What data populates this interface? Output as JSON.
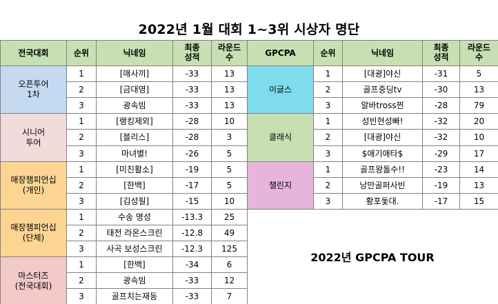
{
  "title": "2022년 1월 대회 1~3위 시상자 명단",
  "tour_label": "2022년 GPCPA TOUR",
  "left_headers": {
    "category": "전국대회",
    "rank": "순위",
    "nickname": "닉네임",
    "score": "최종\n성적",
    "rounds": "라운드\n수"
  },
  "right_headers": {
    "category": "GPCPA",
    "rank": "순위",
    "nickname": "닉네임",
    "score": "최종\n성적",
    "rounds": "라운드\n수"
  },
  "left_groups": [
    {
      "name": "오픈투어\n1차",
      "color": "#c5d9f1",
      "rows": [
        {
          "rank": "1",
          "nickname": "[매사끼]",
          "score": "-33",
          "rounds": "13"
        },
        {
          "rank": "2",
          "nickname": "[금대영]",
          "score": "-33",
          "rounds": "13"
        },
        {
          "rank": "3",
          "nickname": "광속빔",
          "score": "-33",
          "rounds": "13"
        }
      ]
    },
    {
      "name": "시니어\n투어",
      "color": "#f2dcdb",
      "rows": [
        {
          "rank": "1",
          "nickname": "[랭킹제외]",
          "score": "-28",
          "rounds": "10"
        },
        {
          "rank": "2",
          "nickname": "[블리스]",
          "score": "-28",
          "rounds": "3"
        },
        {
          "rank": "3",
          "nickname": "마녀별!",
          "score": "-26",
          "rounds": "5"
        }
      ]
    },
    {
      "name": "매장챔피언십\n(개인)",
      "color": "#fcd592",
      "rows": [
        {
          "rank": "1",
          "nickname": "[미친활소]",
          "score": "-19",
          "rounds": "5"
        },
        {
          "rank": "2",
          "nickname": "[한백]",
          "score": "-17",
          "rounds": "5"
        },
        {
          "rank": "3",
          "nickname": "[김성필]",
          "score": "-15",
          "rounds": "10"
        }
      ]
    },
    {
      "name": "매장챔피언십\n(단체)",
      "color": "#fcd592",
      "rows": [
        {
          "rank": "1",
          "nickname": "수송 명성",
          "score": "-13.3",
          "rounds": "25"
        },
        {
          "rank": "2",
          "nickname": "태전 라온스크린",
          "score": "-12.8",
          "rounds": "49"
        },
        {
          "rank": "3",
          "nickname": "사곡 보성스크린",
          "score": "-12.3",
          "rounds": "125"
        }
      ]
    },
    {
      "name": "마스터즈\n(전국대회)",
      "color": "#f2c8c8",
      "rows": [
        {
          "rank": "1",
          "nickname": "[한백]",
          "score": "-34",
          "rounds": "6"
        },
        {
          "rank": "2",
          "nickname": "광속빔",
          "score": "-33",
          "rounds": "12"
        },
        {
          "rank": "3",
          "nickname": "골프치는재동",
          "score": "-33",
          "rounds": "7"
        }
      ]
    }
  ],
  "right_groups": [
    {
      "name": "이글스",
      "color": "#7fdcec",
      "rows": [
        {
          "rank": "1",
          "nickname": "[대광]야신",
          "score": "-31",
          "rounds": "5"
        },
        {
          "rank": "2",
          "nickname": "골프중딩tv",
          "score": "-30",
          "rounds": "13"
        },
        {
          "rank": "3",
          "nickname": "알바tross찐",
          "score": "-28",
          "rounds": "79"
        }
      ]
    },
    {
      "name": "클래식",
      "color": "#c6e0b4",
      "rows": [
        {
          "rank": "1",
          "nickname": "성빈현성빠!",
          "score": "-32",
          "rounds": "20"
        },
        {
          "rank": "2",
          "nickname": "[대광]야신",
          "score": "-32",
          "rounds": "10"
        },
        {
          "rank": "3",
          "nickname": "$애기애타$",
          "score": "-29",
          "rounds": "17"
        }
      ]
    },
    {
      "name": "챌린지",
      "color": "#e7b5db",
      "rows": [
        {
          "rank": "1",
          "nickname": "골프왕돌수!!",
          "score": "-23",
          "rounds": "14"
        },
        {
          "rank": "2",
          "nickname": "낭만골퍼사빈",
          "score": "-19",
          "rounds": "13"
        },
        {
          "rank": "3",
          "nickname": "황포돛대.",
          "score": "-17",
          "rounds": "15"
        }
      ]
    }
  ]
}
